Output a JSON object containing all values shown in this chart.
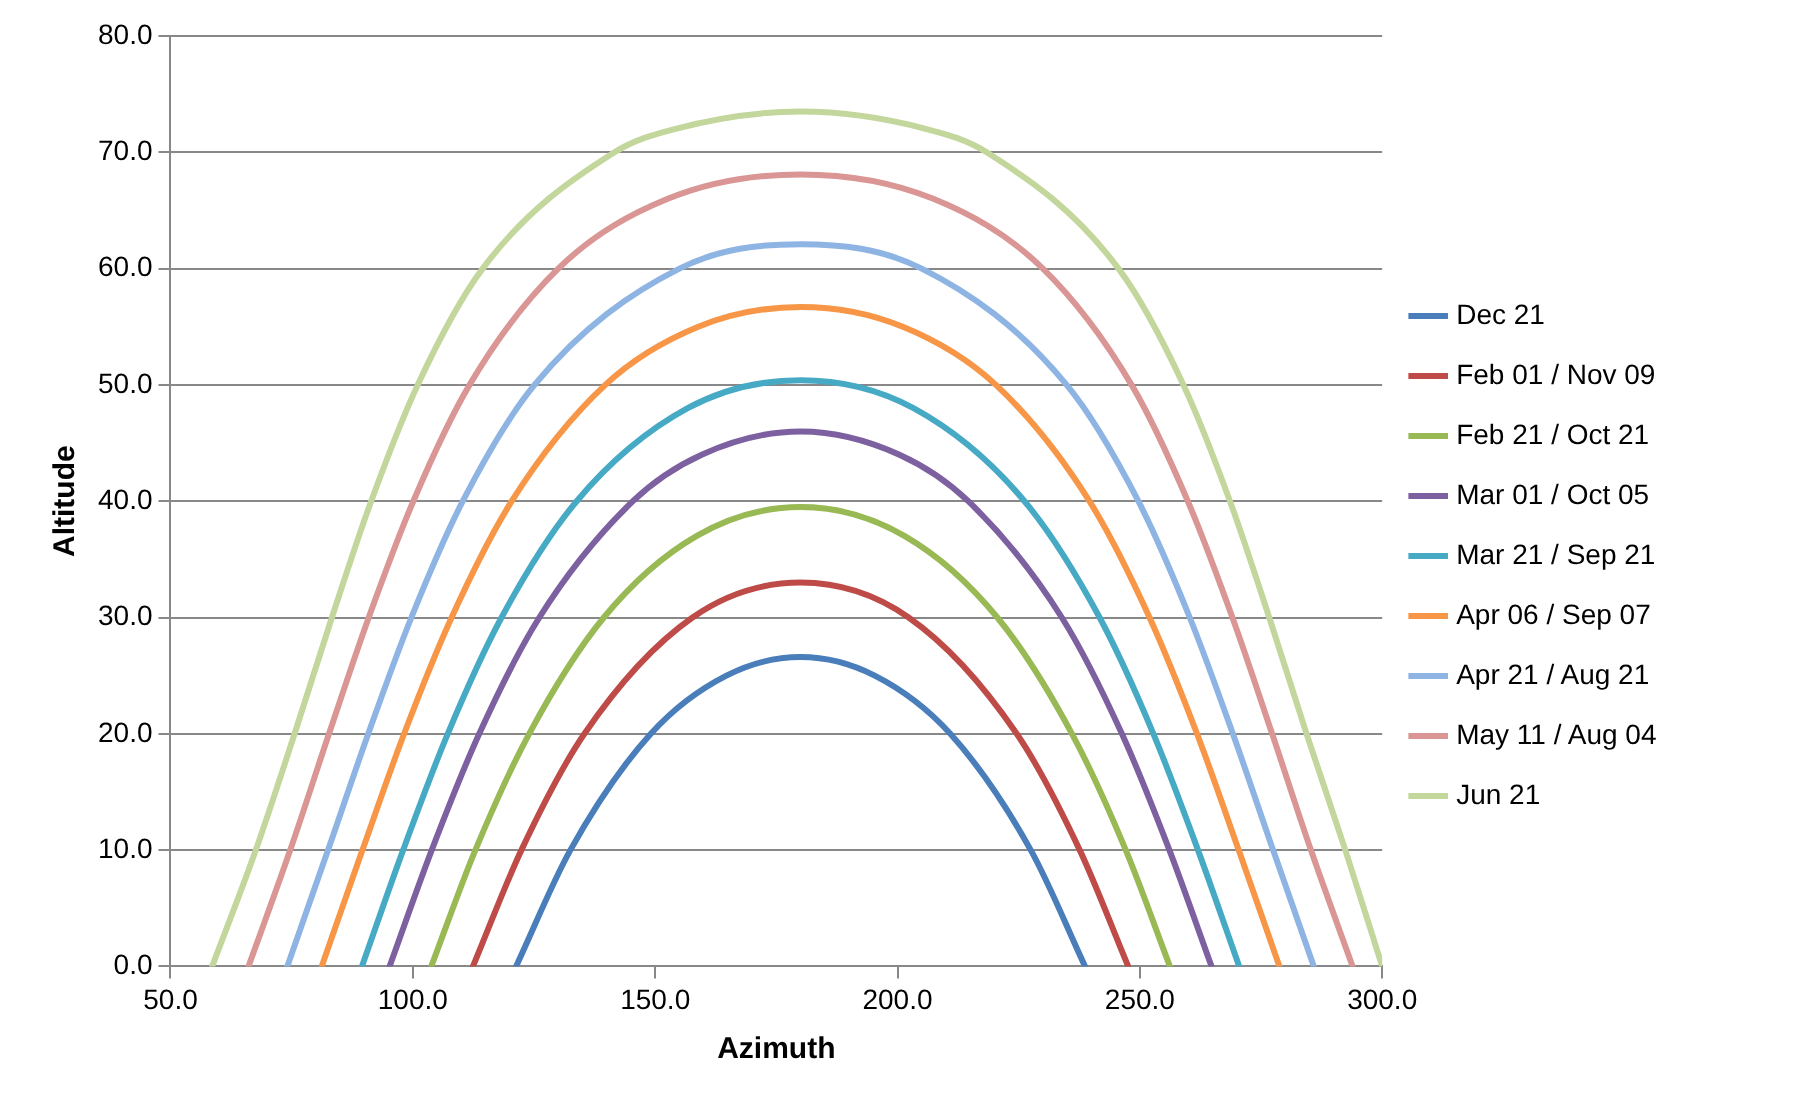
{
  "chart_data": {
    "type": "line",
    "xlabel": "Azimuth",
    "ylabel": "Altitude",
    "xlim": [
      50,
      300
    ],
    "xticks": [
      {
        "value": 50,
        "label": "50.0"
      },
      {
        "value": 100,
        "label": "100.0"
      },
      {
        "value": 150,
        "label": "150.0"
      },
      {
        "value": 200,
        "label": "200.0"
      },
      {
        "value": 250,
        "label": "250.0"
      },
      {
        "value": 300,
        "label": "300.0"
      }
    ],
    "ylim": [
      0,
      80
    ],
    "yticks": [
      {
        "value": 0,
        "label": "0.0"
      },
      {
        "value": 10,
        "label": "10.0"
      },
      {
        "value": 20,
        "label": "20.0"
      },
      {
        "value": 30,
        "label": "30.0"
      },
      {
        "value": 40,
        "label": "40.0"
      },
      {
        "value": 50,
        "label": "50.0"
      },
      {
        "value": 60,
        "label": "60.0"
      },
      {
        "value": 70,
        "label": "70.0"
      },
      {
        "value": 80,
        "label": "80.0"
      }
    ],
    "grid": "y",
    "legend": "right",
    "marker": "none",
    "line_style": "solid",
    "series": [
      {
        "name": "Dec 21",
        "color": "#4a7ebb",
        "x": [
          121.3,
          132.5,
          149.1,
          164.7,
          180,
          195.3,
          210.9,
          227.5,
          238.7
        ],
        "values": [
          0,
          10,
          20,
          25,
          26.6,
          25,
          20,
          10,
          0
        ]
      },
      {
        "name": "Feb 01 / Nov 09",
        "color": "#be4b48",
        "x": [
          112.4,
          122.4,
          135.4,
          157.7,
          180,
          202.3,
          224.6,
          237.6,
          247.6
        ],
        "values": [
          0,
          10,
          20,
          30,
          33,
          30,
          20,
          10,
          0
        ]
      },
      {
        "name": "Feb 21 / Oct 21",
        "color": "#98b954",
        "x": [
          103.8,
          112.9,
          124.0,
          139.4,
          158.5,
          180,
          201.5,
          220.6,
          236.0,
          247.1,
          256.2
        ],
        "values": [
          0,
          10,
          20,
          30,
          37,
          39.5,
          37,
          30,
          20,
          10,
          0
        ]
      },
      {
        "name": "Mar 01 / Oct 05",
        "color": "#7d60a0",
        "x": [
          95.2,
          103.9,
          113.7,
          126.1,
          145.4,
          159.6,
          180,
          200.4,
          214.6,
          233.9,
          246.3,
          256.1,
          264.8
        ],
        "values": [
          0,
          10,
          20,
          30,
          40,
          44,
          46,
          44,
          40,
          30,
          20,
          10,
          0
        ]
      },
      {
        "name": "Mar 21 / Sep 21",
        "color": "#46aac5",
        "x": [
          89.5,
          98.0,
          107.2,
          118.3,
          133.8,
          156.7,
          180,
          203.3,
          226.2,
          241.7,
          252.8,
          262.0,
          270.5
        ],
        "values": [
          0,
          10,
          20,
          30,
          40,
          48,
          50.4,
          48,
          40,
          30,
          20,
          10,
          0
        ]
      },
      {
        "name": "Apr 06 / Sep 07",
        "color": "#f79646",
        "x": [
          81.2,
          89.6,
          98.2,
          108.0,
          120.4,
          139.7,
          158.9,
          180,
          201.1,
          220.3,
          239.6,
          252.0,
          261.8,
          270.4,
          278.8
        ],
        "values": [
          0,
          10,
          20,
          30,
          40,
          50,
          55,
          56.7,
          55,
          50,
          40,
          30,
          20,
          10,
          0
        ]
      },
      {
        "name": "Apr 21 / Aug 21",
        "color": "#8eb4e3",
        "x": [
          74.1,
          82.5,
          90.8,
          99.7,
          110.3,
          125.1,
          155.0,
          180,
          205.0,
          234.9,
          249.7,
          260.3,
          269.2,
          277.5,
          285.9
        ],
        "values": [
          0,
          10,
          20,
          30,
          40,
          50,
          60,
          62.1,
          60,
          50,
          40,
          30,
          20,
          10,
          0
        ]
      },
      {
        "name": "May 11 / Aug 04",
        "color": "#d99694",
        "x": [
          66.1,
          74.7,
          82.7,
          90.9,
          100.1,
          111.7,
          130.0,
          152.6,
          180,
          207.4,
          230.0,
          248.3,
          259.9,
          269.1,
          277.3,
          285.3,
          293.9
        ],
        "values": [
          0,
          10,
          20,
          30,
          40,
          50,
          60,
          66,
          68.1,
          66,
          60,
          50,
          40,
          30,
          20,
          10,
          0
        ]
      },
      {
        "name": "Jun 21",
        "color": "#c3d69b",
        "x": [
          58.6,
          67.6,
          75.6,
          83.3,
          91.4,
          101.0,
          114.4,
          141.6,
          154.0,
          180,
          206.0,
          218.4,
          245.6,
          259.0,
          268.6,
          276.7,
          284.4,
          292.4,
          300
        ],
        "values": [
          0,
          10,
          20,
          30,
          40,
          50,
          60,
          70,
          72,
          73.5,
          72,
          70,
          60,
          50,
          40,
          30,
          20,
          10,
          0
        ]
      }
    ]
  }
}
